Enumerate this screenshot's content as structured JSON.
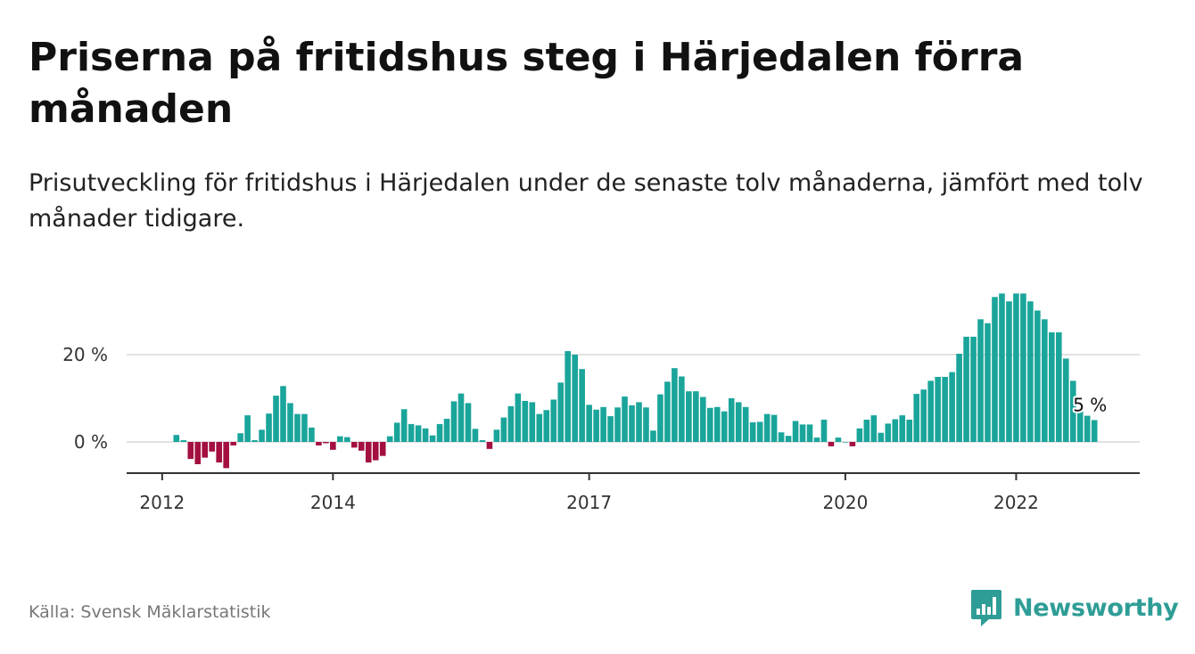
{
  "title": "Priserna på fritidshus steg i Härjedalen förra månaden",
  "subtitle": "Prisutveckling för fritidshus i Härjedalen under de senaste tolv månaderna, jämfört med tolv månader tidigare.",
  "source": "Källa: Svensk Mäklarstatistik",
  "brand": {
    "name": "Newsworthy",
    "icon": "newsworthy-logo-icon",
    "color": "#2e9d96"
  },
  "colors": {
    "positive": "#1aa59b",
    "negative": "#a3103f",
    "grid": "#d9d9d9",
    "axis": "#333333"
  },
  "chart_data": {
    "type": "bar",
    "x_start": "2012-03",
    "frequency": "monthly",
    "x_ticks": [
      "2012",
      "2014",
      "2017",
      "2020",
      "2022"
    ],
    "y_ticks": [
      "0 %",
      "20 %"
    ],
    "ylim": [
      -7,
      35
    ],
    "grid": true,
    "end_label": "5 %",
    "values": [
      1.6,
      0.4,
      -3.9,
      -5.1,
      -3.6,
      -2.2,
      -4.7,
      -6.0,
      -0.8,
      2.0,
      6.1,
      0.4,
      2.8,
      6.5,
      10.6,
      12.8,
      8.9,
      6.4,
      6.4,
      3.3,
      -0.8,
      -0.3,
      -1.8,
      1.3,
      1.1,
      -1.3,
      -2.0,
      -4.7,
      -4.2,
      -3.2,
      1.3,
      4.4,
      7.5,
      4.1,
      3.8,
      3.1,
      1.5,
      4.1,
      5.3,
      9.3,
      11.1,
      8.9,
      3.0,
      0.4,
      -1.6,
      2.8,
      5.6,
      8.2,
      11.1,
      9.4,
      9.1,
      6.4,
      7.3,
      9.7,
      13.6,
      20.8,
      20.0,
      16.7,
      8.5,
      7.4,
      8.0,
      5.9,
      7.9,
      10.4,
      8.4,
      9.1,
      7.9,
      2.6,
      10.9,
      13.8,
      16.9,
      15.0,
      11.6,
      11.6,
      10.3,
      7.8,
      8.0,
      7.0,
      10.0,
      9.1,
      8.0,
      4.5,
      4.6,
      6.4,
      6.2,
      2.2,
      1.4,
      4.8,
      4.0,
      4.0,
      1.0,
      5.1,
      -1.0,
      1.0,
      0.0,
      -1.0,
      3.1,
      5.1,
      6.1,
      2.1,
      4.2,
      5.2,
      6.1,
      5.1,
      11.0,
      12.0,
      14.0,
      14.9,
      14.9,
      16.0,
      20.2,
      24.1,
      24.1,
      28.1,
      27.2,
      33.2,
      34.0,
      32.2,
      34.0,
      34.0,
      32.2,
      30.1,
      28.1,
      25.1,
      25.1,
      19.1,
      14.0,
      7.0,
      6.0,
      5.0
    ]
  }
}
